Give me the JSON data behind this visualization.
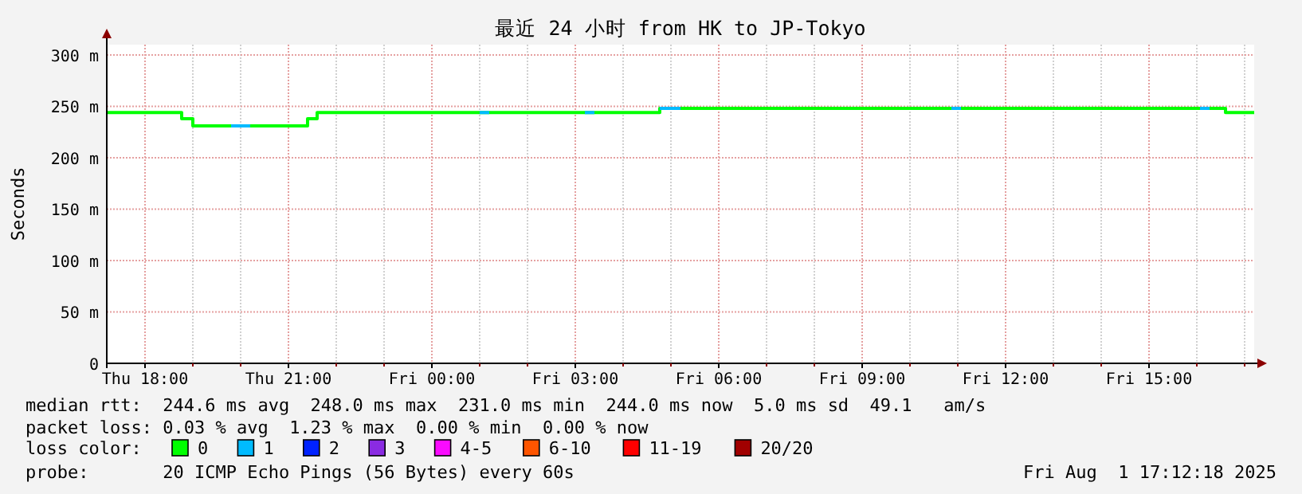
{
  "chart_data": {
    "type": "step",
    "title": "最近 24 小时 from HK to JP-Tokyo",
    "ylabel": "Seconds",
    "legend_title": "loss color:",
    "xlim": [
      "2025-07-31T17:12",
      "2025-08-01T17:12"
    ],
    "xticks": [
      {
        "value": "2025-07-31T18:00",
        "label": "Thu 18:00"
      },
      {
        "value": "2025-07-31T19:00",
        "label": null
      },
      {
        "value": "2025-07-31T20:00",
        "label": null
      },
      {
        "value": "2025-07-31T21:00",
        "label": "Thu 21:00"
      },
      {
        "value": "2025-07-31T22:00",
        "label": null
      },
      {
        "value": "2025-07-31T23:00",
        "label": null
      },
      {
        "value": "2025-08-01T00:00",
        "label": "Fri 00:00"
      },
      {
        "value": "2025-08-01T01:00",
        "label": null
      },
      {
        "value": "2025-08-01T02:00",
        "label": null
      },
      {
        "value": "2025-08-01T03:00",
        "label": "Fri 03:00"
      },
      {
        "value": "2025-08-01T04:00",
        "label": null
      },
      {
        "value": "2025-08-01T05:00",
        "label": null
      },
      {
        "value": "2025-08-01T06:00",
        "label": "Fri 06:00"
      },
      {
        "value": "2025-08-01T07:00",
        "label": null
      },
      {
        "value": "2025-08-01T08:00",
        "label": null
      },
      {
        "value": "2025-08-01T09:00",
        "label": "Fri 09:00"
      },
      {
        "value": "2025-08-01T10:00",
        "label": null
      },
      {
        "value": "2025-08-01T11:00",
        "label": null
      },
      {
        "value": "2025-08-01T12:00",
        "label": "Fri 12:00"
      },
      {
        "value": "2025-08-01T13:00",
        "label": null
      },
      {
        "value": "2025-08-01T14:00",
        "label": null
      },
      {
        "value": "2025-08-01T15:00",
        "label": "Fri 15:00"
      },
      {
        "value": "2025-08-01T16:00",
        "label": null
      },
      {
        "value": "2025-08-01T17:00",
        "label": null
      }
    ],
    "ylim": [
      0,
      310
    ],
    "yticks": [
      {
        "value": 0,
        "label": "0"
      },
      {
        "value": 50,
        "label": "50 m"
      },
      {
        "value": 100,
        "label": "100 m"
      },
      {
        "value": 150,
        "label": "150 m"
      },
      {
        "value": 200,
        "label": "200 m"
      },
      {
        "value": 250,
        "label": "250 m"
      },
      {
        "value": 300,
        "label": "300 m"
      }
    ],
    "grid": true,
    "legend": "bottom",
    "series": [
      {
        "name": "0",
        "color": "#00ff00",
        "x": [
          "2025-07-31T17:12",
          "2025-07-31T18:46",
          "2025-07-31T19:00",
          "2025-07-31T21:24",
          "2025-07-31T21:36",
          "2025-08-01T04:46",
          "2025-08-01T16:36",
          "2025-08-01T17:12"
        ],
        "values": [
          244,
          238,
          231,
          238,
          244,
          248,
          244,
          244
        ]
      },
      {
        "name": "1",
        "color": "#00bbff",
        "x": [
          "2025-07-31T19:48",
          "2025-07-31T20:12",
          "2025-07-31T20:13",
          "2025-08-01T01:00",
          "2025-08-01T01:12",
          "2025-08-01T01:13",
          "2025-08-01T03:12",
          "2025-08-01T03:24",
          "2025-08-01T03:25",
          "2025-08-01T04:46",
          "2025-08-01T05:12",
          "2025-08-01T05:13",
          "2025-08-01T10:52",
          "2025-08-01T11:04",
          "2025-08-01T11:05",
          "2025-08-01T16:04",
          "2025-08-01T16:16"
        ],
        "values": [
          231,
          231,
          null,
          244,
          244,
          null,
          244,
          244,
          null,
          248,
          248,
          null,
          248,
          248,
          null,
          248,
          248
        ]
      },
      {
        "name": "2",
        "color": "#0022ff"
      },
      {
        "name": "3",
        "color": "#8a2be2"
      },
      {
        "name": "4-5",
        "color": "#fa0bff"
      },
      {
        "name": "6-10",
        "color": "#ff5500"
      },
      {
        "name": "11-19",
        "color": "#ff0000"
      },
      {
        "name": "20/20",
        "color": "#a10000"
      }
    ],
    "annotations": [
      "median rtt:  244.6 ms avg  248.0 ms max  231.0 ms min  244.0 ms now  5.0 ms sd  49.1   am/s",
      "packet loss: 0.03 % avg  1.23 % max  0.00 % min  0.00 % now",
      "probe:       20 ICMP Echo Pings (56 Bytes) every 60s",
      "Fri Aug  1 17:12:18 2025"
    ]
  }
}
